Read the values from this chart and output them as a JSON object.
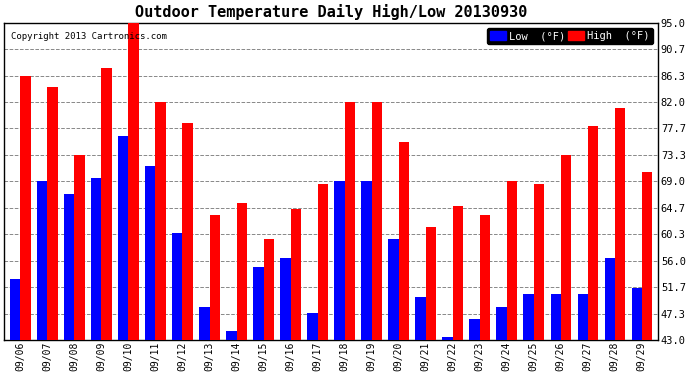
{
  "title": "Outdoor Temperature Daily High/Low 20130930",
  "copyright": "Copyright 2013 Cartronics.com",
  "dates": [
    "09/06",
    "09/07",
    "09/08",
    "09/09",
    "09/10",
    "09/11",
    "09/12",
    "09/13",
    "09/14",
    "09/15",
    "09/16",
    "09/17",
    "09/18",
    "09/19",
    "09/20",
    "09/21",
    "09/22",
    "09/23",
    "09/24",
    "09/25",
    "09/26",
    "09/27",
    "09/28",
    "09/29"
  ],
  "high": [
    86.3,
    84.5,
    73.3,
    87.5,
    95.0,
    82.0,
    78.5,
    63.5,
    65.5,
    59.5,
    64.5,
    68.5,
    82.0,
    82.0,
    75.5,
    61.5,
    65.0,
    63.5,
    69.0,
    68.5,
    73.3,
    78.0,
    81.0,
    70.5
  ],
  "low": [
    53.0,
    69.0,
    67.0,
    69.5,
    76.5,
    71.5,
    60.5,
    48.5,
    44.5,
    55.0,
    56.5,
    47.5,
    69.0,
    69.0,
    59.5,
    50.0,
    43.5,
    46.5,
    48.5,
    50.5,
    50.5,
    50.5,
    56.5,
    51.5
  ],
  "ylim": [
    43.0,
    95.0
  ],
  "yticks": [
    43.0,
    47.3,
    51.7,
    56.0,
    60.3,
    64.7,
    69.0,
    73.3,
    77.7,
    82.0,
    86.3,
    90.7,
    95.0
  ],
  "bar_color_low": "#0000ff",
  "bar_color_high": "#ff0000",
  "bg_color": "#ffffff",
  "grid_color": "#888888",
  "title_fontsize": 11,
  "legend_low_label": "Low  (°F)",
  "legend_high_label": "High  (°F)"
}
